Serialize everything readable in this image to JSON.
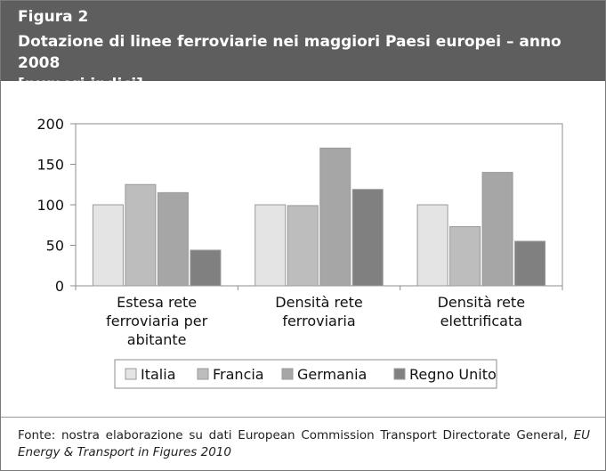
{
  "figure": {
    "label": "Figura 2",
    "title_line1": "Dotazione di linee ferroviarie nei maggiori Paesi europei – anno 2008",
    "title_line2": "[numeri indici]"
  },
  "source": {
    "prefix": "Fonte: nostra elaborazione su dati European Commission Transport Directorate General, ",
    "publication": "EU Energy & Transport in Figures 2010"
  },
  "colors": {
    "header_bg": "#5e5e5e",
    "Italia": "#e4e4e4",
    "Francia": "#bdbdbd",
    "Germania": "#a6a6a6",
    "Regno Unito": "#808080"
  },
  "chart_data": {
    "type": "bar",
    "title": "",
    "xlabel": "",
    "ylabel": "",
    "ylim": [
      0,
      200
    ],
    "yticks": [
      0,
      50,
      100,
      150,
      200
    ],
    "grid": false,
    "legend_position": "bottom",
    "categories": [
      [
        "Estesa rete",
        "ferroviaria per",
        "abitante"
      ],
      [
        "Densità rete",
        "ferroviaria"
      ],
      [
        "Densità rete",
        "elettrificata"
      ]
    ],
    "series": [
      {
        "name": "Italia",
        "values": [
          100,
          100,
          100
        ]
      },
      {
        "name": "Francia",
        "values": [
          125,
          99,
          73
        ]
      },
      {
        "name": "Germania",
        "values": [
          115,
          170,
          140
        ]
      },
      {
        "name": "Regno Unito",
        "values": [
          44,
          119,
          55
        ]
      }
    ]
  }
}
